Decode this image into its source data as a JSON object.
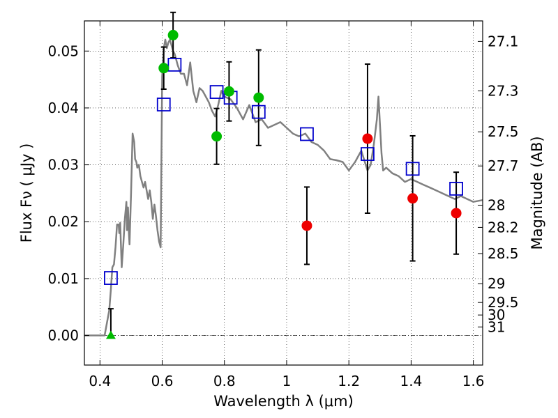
{
  "chart_data": {
    "type": "scatter",
    "xlabel": "Wavelength  λ (μm)",
    "ylabel": "Flux  Fν  ( μJy )",
    "ylabel_right": "Magnitude (AB)",
    "xlim": [
      0.35,
      1.63
    ],
    "ylim": [
      -0.0052,
      0.0553
    ],
    "grid": true,
    "x_ticks": [
      0.4,
      0.6,
      0.8,
      1.0,
      1.2,
      1.4,
      1.6
    ],
    "x_tick_labels": [
      "0.4",
      "0.6",
      "0.8",
      "1",
      "1.2",
      "1.4",
      "1.6"
    ],
    "y_ticks": [
      0.0,
      0.01,
      0.02,
      0.03,
      0.04,
      0.05
    ],
    "y_tick_labels": [
      "0.00",
      "0.01",
      "0.02",
      "0.03",
      "0.04",
      "0.05"
    ],
    "right_ticks": [
      {
        "label": "27.1",
        "flux": 0.0517
      },
      {
        "label": "27.3",
        "flux": 0.043
      },
      {
        "label": "27.5",
        "flux": 0.0358
      },
      {
        "label": "27.7",
        "flux": 0.0298
      },
      {
        "label": "28",
        "flux": 0.0229
      },
      {
        "label": "28.2",
        "flux": 0.019
      },
      {
        "label": "28.5",
        "flux": 0.0144
      },
      {
        "label": "29",
        "flux": 0.0091
      },
      {
        "label": "29.5",
        "flux": 0.0058
      },
      {
        "label": "30",
        "flux": 0.0036
      },
      {
        "label": "31",
        "flux": 0.0015
      }
    ],
    "series": [
      {
        "kind": "line",
        "color": "#808080",
        "x": [
          0.35,
          0.415,
          0.425,
          0.43,
          0.435,
          0.44,
          0.445,
          0.45,
          0.455,
          0.46,
          0.462,
          0.465,
          0.47,
          0.475,
          0.48,
          0.485,
          0.487,
          0.49,
          0.493,
          0.495,
          0.5,
          0.505,
          0.51,
          0.513,
          0.517,
          0.52,
          0.525,
          0.53,
          0.535,
          0.54,
          0.545,
          0.55,
          0.555,
          0.56,
          0.565,
          0.57,
          0.575,
          0.58,
          0.585,
          0.59,
          0.595,
          0.6,
          0.605,
          0.61,
          0.615,
          0.62,
          0.625,
          0.63,
          0.635,
          0.64,
          0.645,
          0.65,
          0.66,
          0.67,
          0.68,
          0.69,
          0.7,
          0.71,
          0.72,
          0.73,
          0.74,
          0.75,
          0.76,
          0.77,
          0.78,
          0.79,
          0.8,
          0.82,
          0.84,
          0.86,
          0.88,
          0.9,
          0.92,
          0.94,
          0.96,
          0.98,
          1.0,
          1.02,
          1.04,
          1.06,
          1.08,
          1.1,
          1.12,
          1.14,
          1.16,
          1.18,
          1.2,
          1.22,
          1.24,
          1.26,
          1.27,
          1.28,
          1.29,
          1.295,
          1.3,
          1.305,
          1.31,
          1.32,
          1.34,
          1.36,
          1.38,
          1.4,
          1.42,
          1.44,
          1.46,
          1.48,
          1.5,
          1.52,
          1.54,
          1.56,
          1.58,
          1.6,
          1.63
        ],
        "y": [
          0.0,
          0.0,
          0.003,
          0.0045,
          0.008,
          0.012,
          0.0125,
          0.0155,
          0.0195,
          0.0195,
          0.018,
          0.0198,
          0.012,
          0.016,
          0.0205,
          0.0235,
          0.0185,
          0.0225,
          0.018,
          0.016,
          0.025,
          0.0355,
          0.034,
          0.031,
          0.0305,
          0.0295,
          0.03,
          0.028,
          0.027,
          0.026,
          0.027,
          0.0255,
          0.024,
          0.0255,
          0.0235,
          0.0205,
          0.023,
          0.021,
          0.0185,
          0.0165,
          0.0155,
          0.0455,
          0.0505,
          0.052,
          0.0505,
          0.0515,
          0.052,
          0.051,
          0.05,
          0.0495,
          0.0485,
          0.0475,
          0.046,
          0.046,
          0.044,
          0.048,
          0.043,
          0.041,
          0.0435,
          0.043,
          0.042,
          0.041,
          0.0395,
          0.0385,
          0.0405,
          0.043,
          0.042,
          0.0415,
          0.04,
          0.038,
          0.0405,
          0.0375,
          0.038,
          0.0365,
          0.037,
          0.0375,
          0.0365,
          0.0355,
          0.035,
          0.0355,
          0.034,
          0.0335,
          0.0325,
          0.031,
          0.0308,
          0.0305,
          0.029,
          0.0305,
          0.0325,
          0.029,
          0.03,
          0.0335,
          0.038,
          0.042,
          0.037,
          0.032,
          0.029,
          0.0295,
          0.0285,
          0.028,
          0.027,
          0.0275,
          0.027,
          0.0265,
          0.026,
          0.0255,
          0.025,
          0.0245,
          0.024,
          0.0245,
          0.024,
          0.0235,
          0.0238
        ]
      },
      {
        "kind": "open-squares",
        "color": "#0000cc",
        "points": [
          [
            0.435,
            0.0101
          ],
          [
            0.605,
            0.0406
          ],
          [
            0.64,
            0.0476
          ],
          [
            0.775,
            0.0428
          ],
          [
            0.82,
            0.0418
          ],
          [
            0.91,
            0.0393
          ],
          [
            1.065,
            0.0354
          ],
          [
            1.26,
            0.0319
          ],
          [
            1.405,
            0.0293
          ],
          [
            1.545,
            0.0258
          ]
        ]
      },
      {
        "kind": "filled-circles",
        "color": "#00bb00",
        "points": [
          {
            "x": 0.605,
            "y": 0.047,
            "err": 0.0037
          },
          {
            "x": 0.635,
            "y": 0.0528,
            "err": 0.004
          },
          {
            "x": 0.775,
            "y": 0.035,
            "err": 0.0049
          },
          {
            "x": 0.815,
            "y": 0.0429,
            "err": 0.0052
          },
          {
            "x": 0.91,
            "y": 0.0418,
            "err": 0.0084
          }
        ]
      },
      {
        "kind": "filled-circles",
        "color": "#ee0000",
        "points": [
          {
            "x": 1.065,
            "y": 0.0193,
            "err": 0.0068
          },
          {
            "x": 1.26,
            "y": 0.0346,
            "err": 0.0131
          },
          {
            "x": 1.405,
            "y": 0.0241,
            "err": 0.011
          },
          {
            "x": 1.545,
            "y": 0.0215,
            "err": 0.0072
          }
        ]
      },
      {
        "kind": "triangle",
        "color": "#00bb00",
        "points": [
          {
            "x": 0.435,
            "y": 0.0,
            "err_low": 0.0,
            "err_high": 0.0047
          }
        ]
      }
    ]
  }
}
